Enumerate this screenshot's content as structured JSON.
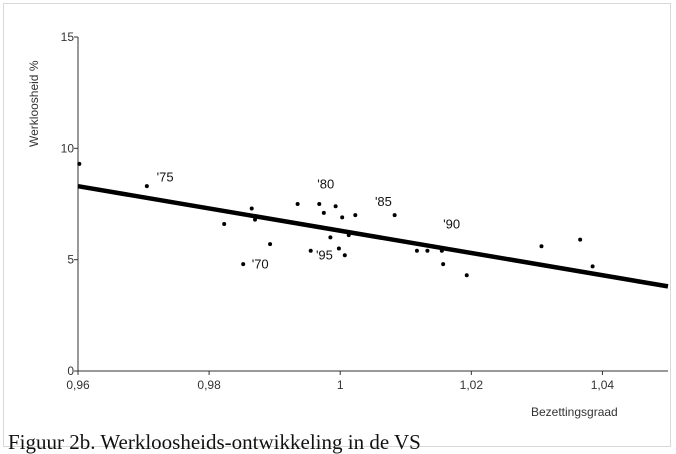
{
  "caption": "Figuur 2b. Werkloosheids-ontwikkeling in de VS",
  "chart_data": {
    "type": "scatter",
    "title": "",
    "xlabel": "Bezettingsgraad",
    "ylabel": "Werkloosheid %",
    "xlim": [
      0.96,
      1.05
    ],
    "ylim": [
      0,
      15
    ],
    "x_ticks": [
      0.96,
      0.98,
      1.0,
      1.02,
      1.04
    ],
    "x_tick_labels": [
      "0,96",
      "0,98",
      "1",
      "1,02",
      "1,04"
    ],
    "y_ticks": [
      0,
      5,
      10,
      15
    ],
    "y_tick_labels": [
      "0",
      "5",
      "10",
      "15"
    ],
    "grid": false,
    "series": [
      {
        "points": [
          {
            "x": 0.9602,
            "y": 9.3
          },
          {
            "x": 0.9705,
            "y": 8.3
          },
          {
            "x": 0.9823,
            "y": 6.6
          },
          {
            "x": 0.9852,
            "y": 4.8
          },
          {
            "x": 0.9865,
            "y": 7.3
          },
          {
            "x": 0.987,
            "y": 6.8
          },
          {
            "x": 0.9893,
            "y": 5.7
          },
          {
            "x": 0.9935,
            "y": 7.5
          },
          {
            "x": 0.9955,
            "y": 5.4
          },
          {
            "x": 0.9968,
            "y": 7.5
          },
          {
            "x": 0.9975,
            "y": 7.1
          },
          {
            "x": 0.9985,
            "y": 6.0
          },
          {
            "x": 0.9993,
            "y": 7.4
          },
          {
            "x": 0.9998,
            "y": 5.5
          },
          {
            "x": 1.0003,
            "y": 6.9
          },
          {
            "x": 1.0007,
            "y": 5.2
          },
          {
            "x": 1.0013,
            "y": 6.1
          },
          {
            "x": 1.0023,
            "y": 7.0
          },
          {
            "x": 1.0083,
            "y": 7.0
          },
          {
            "x": 1.0117,
            "y": 5.4
          },
          {
            "x": 1.0133,
            "y": 5.4
          },
          {
            "x": 1.0155,
            "y": 5.4
          },
          {
            "x": 1.0157,
            "y": 4.8
          },
          {
            "x": 1.0193,
            "y": 4.3
          },
          {
            "x": 1.0307,
            "y": 5.6
          },
          {
            "x": 1.0366,
            "y": 5.9
          },
          {
            "x": 1.0385,
            "y": 4.7
          }
        ]
      }
    ],
    "trend_line": {
      "x": [
        0.96,
        1.05
      ],
      "y": [
        8.3,
        3.8
      ]
    },
    "annotations": [
      {
        "text": "'75",
        "x": 0.972,
        "y": 8.5
      },
      {
        "text": "'70",
        "x": 0.9865,
        "y": 4.6
      },
      {
        "text": "'80",
        "x": 0.9965,
        "y": 8.2
      },
      {
        "text": "'85",
        "x": 1.0053,
        "y": 7.4
      },
      {
        "text": "'95",
        "x": 0.9963,
        "y": 5.0
      },
      {
        "text": "'90",
        "x": 1.0157,
        "y": 6.4
      }
    ]
  }
}
